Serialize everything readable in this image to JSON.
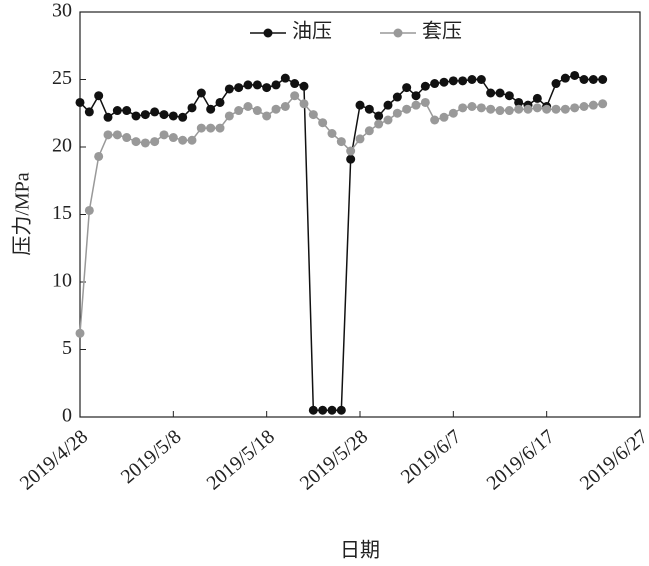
{
  "chart_data": {
    "type": "line",
    "x_label": "日期",
    "y_label": "压力/MPa",
    "x": [
      "2019/4/28",
      "2019/4/29",
      "2019/4/30",
      "2019/5/1",
      "2019/5/2",
      "2019/5/3",
      "2019/5/4",
      "2019/5/5",
      "2019/5/6",
      "2019/5/7",
      "2019/5/8",
      "2019/5/9",
      "2019/5/10",
      "2019/5/11",
      "2019/5/12",
      "2019/5/13",
      "2019/5/14",
      "2019/5/15",
      "2019/5/16",
      "2019/5/17",
      "2019/5/18",
      "2019/5/19",
      "2019/5/20",
      "2019/5/21",
      "2019/5/22",
      "2019/5/23",
      "2019/5/24",
      "2019/5/25",
      "2019/5/26",
      "2019/5/27",
      "2019/5/28",
      "2019/5/29",
      "2019/5/30",
      "2019/5/31",
      "2019/6/1",
      "2019/6/2",
      "2019/6/3",
      "2019/6/4",
      "2019/6/5",
      "2019/6/6",
      "2019/6/7",
      "2019/6/8",
      "2019/6/9",
      "2019/6/10",
      "2019/6/11",
      "2019/6/12",
      "2019/6/13",
      "2019/6/14",
      "2019/6/15",
      "2019/6/16",
      "2019/6/17",
      "2019/6/18",
      "2019/6/19",
      "2019/6/20",
      "2019/6/21",
      "2019/6/22",
      "2019/6/23"
    ],
    "series": [
      {
        "name": "油压",
        "color": "#111111",
        "values": [
          23.3,
          22.6,
          23.8,
          22.2,
          22.7,
          22.7,
          22.3,
          22.4,
          22.6,
          22.4,
          22.3,
          22.2,
          22.9,
          24.0,
          22.8,
          23.3,
          24.3,
          24.4,
          24.6,
          24.6,
          24.4,
          24.6,
          25.1,
          24.7,
          24.5,
          0.5,
          0.5,
          0.5,
          0.5,
          19.1,
          23.1,
          22.8,
          22.3,
          23.1,
          23.7,
          24.4,
          23.8,
          24.5,
          24.7,
          24.8,
          24.9,
          24.9,
          25.0,
          25.0,
          24.0,
          24.0,
          23.8,
          23.3,
          23.1,
          23.6,
          23.0,
          24.7,
          25.1,
          25.3,
          25.0,
          25.0,
          25.0
        ]
      },
      {
        "name": "套压",
        "color": "#999999",
        "values": [
          6.2,
          15.3,
          19.3,
          20.9,
          20.9,
          20.7,
          20.4,
          20.3,
          20.4,
          20.9,
          20.7,
          20.5,
          20.5,
          21.4,
          21.4,
          21.4,
          22.3,
          22.7,
          23.0,
          22.7,
          22.3,
          22.8,
          23.0,
          23.8,
          23.2,
          22.4,
          21.8,
          21.0,
          20.4,
          19.7,
          20.6,
          21.2,
          21.7,
          22.0,
          22.5,
          22.8,
          23.1,
          23.3,
          22.0,
          22.2,
          22.5,
          22.9,
          23.0,
          22.9,
          22.8,
          22.7,
          22.7,
          22.8,
          22.8,
          22.9,
          22.8,
          22.8,
          22.8,
          22.9,
          23.0,
          23.1,
          23.2
        ]
      }
    ],
    "xlim": [
      "2019/4/28",
      "2019/6/27"
    ],
    "xticks": [
      "2019/4/28",
      "2019/5/8",
      "2019/5/18",
      "2019/5/28",
      "2019/6/7",
      "2019/6/17",
      "2019/6/27"
    ],
    "ylim": [
      0,
      30
    ],
    "yticks": [
      0,
      5,
      10,
      15,
      20,
      25,
      30
    ],
    "legend": "top"
  }
}
